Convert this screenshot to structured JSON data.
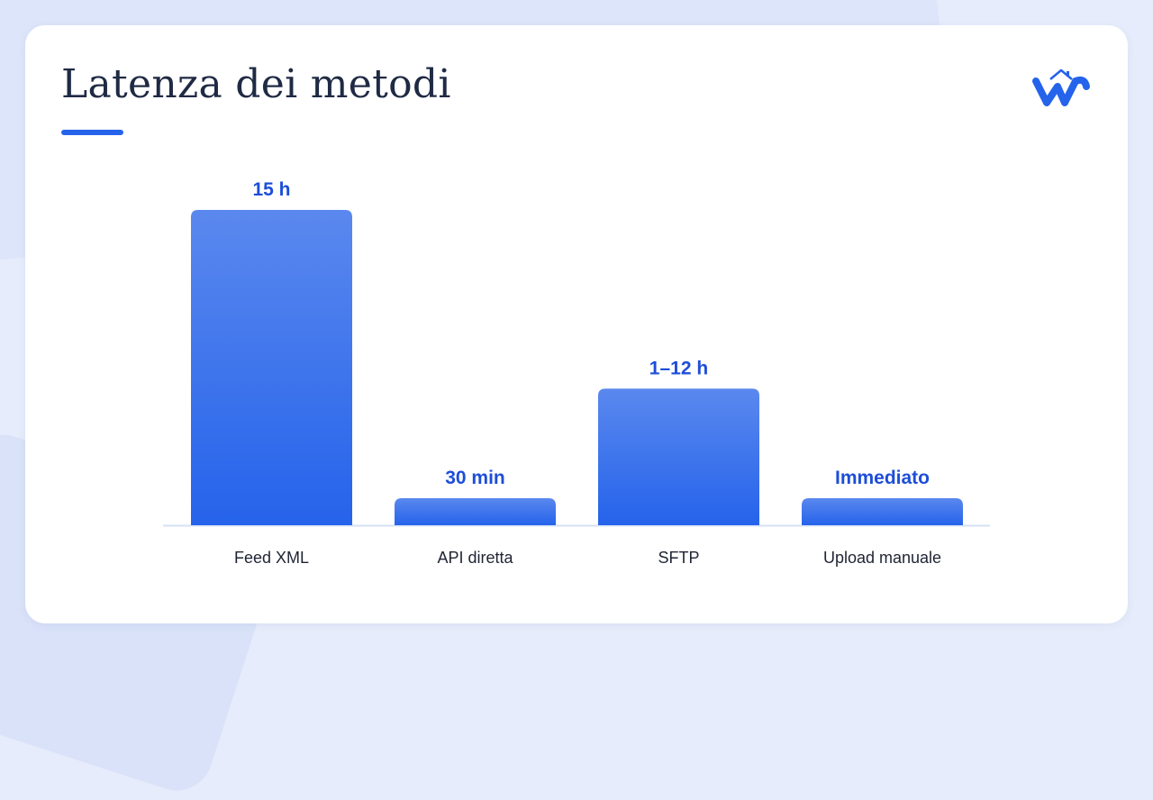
{
  "title": "Latenza dei metodi",
  "logo": {
    "icon": "w-house-logo-icon"
  },
  "colors": {
    "accent": "#2563eb",
    "bar_top": "#5a88ee",
    "bar_bottom": "#2563eb",
    "value_text": "#1d4ed8",
    "baseline": "#d6e1f5"
  },
  "chart_data": {
    "type": "bar",
    "categories": [
      "Feed XML",
      "API diretta",
      "SFTP",
      "Upload manuale"
    ],
    "values": [
      15,
      0.5,
      6.5,
      0.5
    ],
    "value_labels": [
      "15 h",
      "30 min",
      "1–12 h",
      "Immediato"
    ],
    "title": "Latenza dei metodi",
    "xlabel": "",
    "ylabel": "",
    "ylim": [
      0,
      15
    ],
    "grid": false
  }
}
